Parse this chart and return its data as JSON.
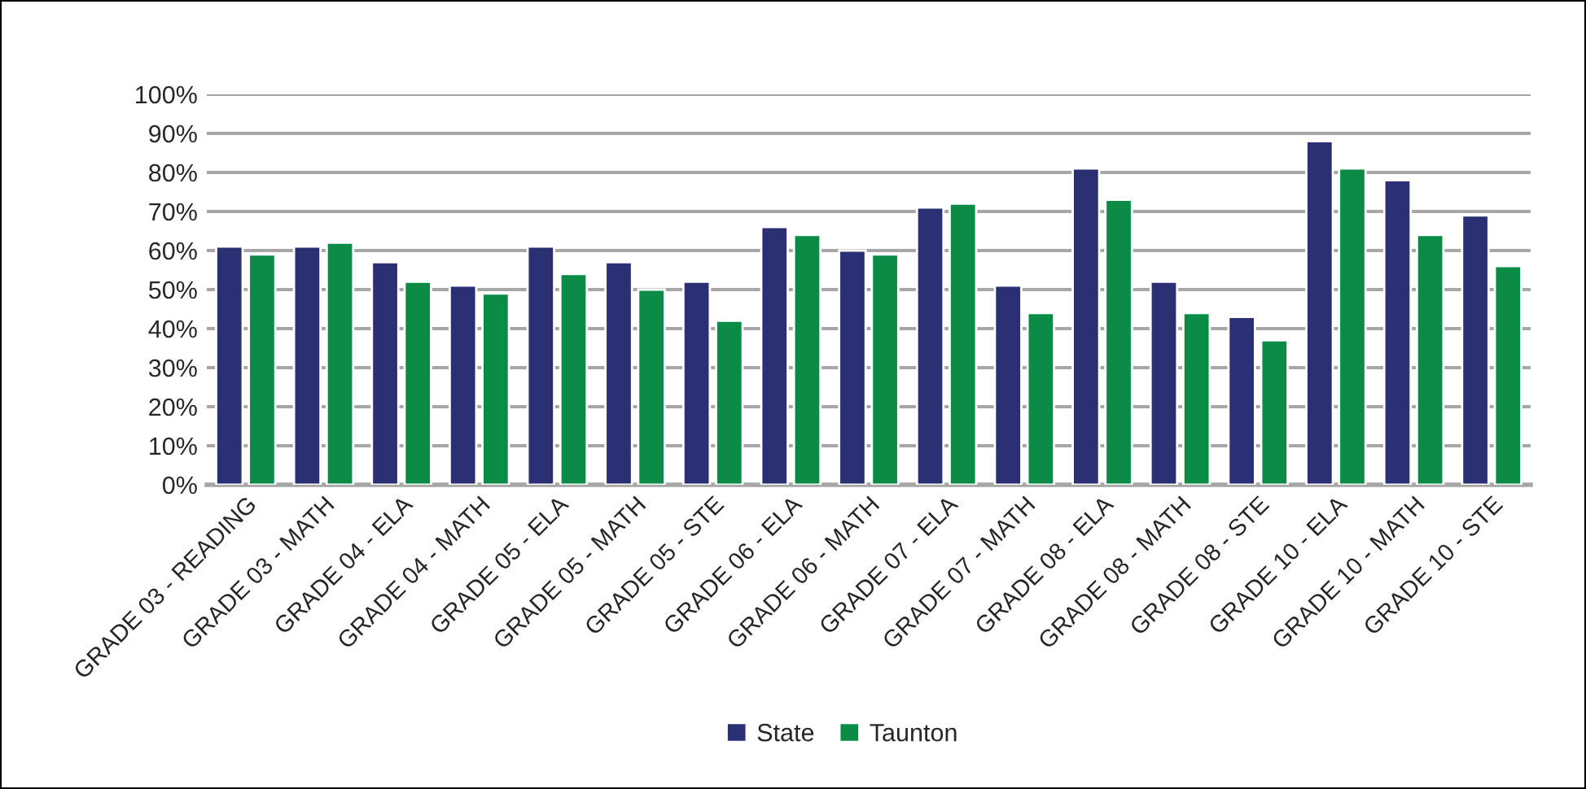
{
  "chart_data": {
    "type": "bar",
    "categories": [
      "GRADE 03 - READING",
      "GRADE 03 - MATH",
      "GRADE 04 - ELA",
      "GRADE 04 - MATH",
      "GRADE 05 - ELA",
      "GRADE 05 - MATH",
      "GRADE 05 - STE",
      "GRADE 06 - ELA",
      "GRADE 06 - MATH",
      "GRADE 07 - ELA",
      "GRADE 07 - MATH",
      "GRADE 08 - ELA",
      "GRADE 08 - MATH",
      "GRADE 08 - STE",
      "GRADE 10 - ELA",
      "GRADE 10 - MATH",
      "GRADE 10 - STE"
    ],
    "series": [
      {
        "name": "State",
        "color": "#2b2f74",
        "values": [
          61,
          61,
          57,
          51,
          61,
          57,
          52,
          66,
          60,
          71,
          51,
          81,
          52,
          43,
          88,
          78,
          69
        ]
      },
      {
        "name": "Taunton",
        "color": "#0b8c46",
        "values": [
          59,
          62,
          52,
          49,
          54,
          50,
          42,
          64,
          59,
          72,
          44,
          73,
          44,
          37,
          81,
          64,
          56
        ]
      }
    ],
    "ylim": [
      0,
      100
    ],
    "yticks": [
      {
        "value": 0,
        "label": "0%"
      },
      {
        "value": 10,
        "label": "10%"
      },
      {
        "value": 20,
        "label": "20%"
      },
      {
        "value": 30,
        "label": "30%"
      },
      {
        "value": 40,
        "label": "40%"
      },
      {
        "value": 50,
        "label": "50%"
      },
      {
        "value": 60,
        "label": "60%"
      },
      {
        "value": 70,
        "label": "70%"
      },
      {
        "value": 80,
        "label": "80%"
      },
      {
        "value": 90,
        "label": "90%"
      },
      {
        "value": 100,
        "label": "100%"
      }
    ],
    "grid": "y",
    "legend": "bottom"
  }
}
